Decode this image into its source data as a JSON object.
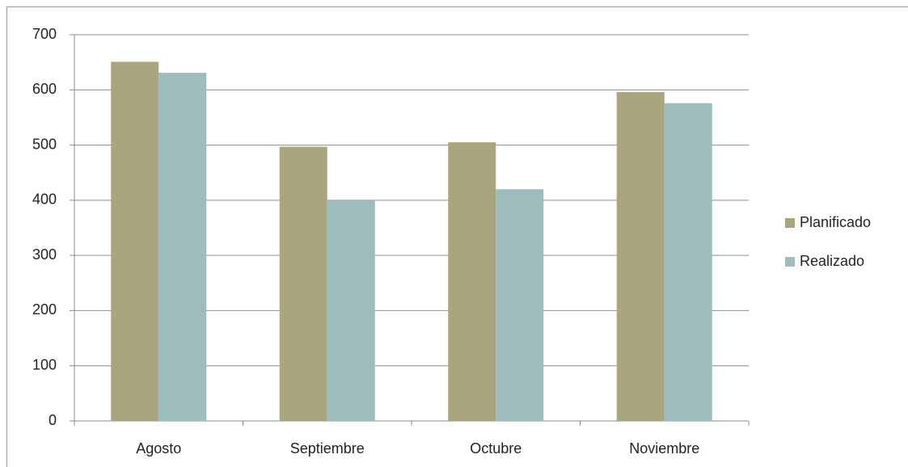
{
  "chart_data": {
    "type": "bar",
    "categories": [
      "Agosto",
      "Septiembre",
      "Octubre",
      "Noviembre"
    ],
    "series": [
      {
        "name": "Planificado",
        "color": "#a9a57c",
        "values": [
          651,
          497,
          505,
          596
        ]
      },
      {
        "name": "Realizado",
        "color": "#9dbdbc",
        "values": [
          631,
          400,
          420,
          576
        ]
      }
    ],
    "ylim": [
      0,
      700
    ],
    "yticks": [
      0,
      100,
      200,
      300,
      400,
      500,
      600,
      700
    ],
    "grid": true,
    "legend": "right"
  }
}
